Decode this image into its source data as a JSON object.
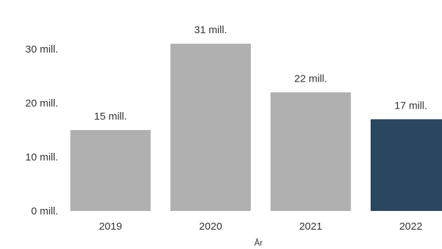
{
  "chart_data": {
    "type": "bar",
    "categories": [
      "2019",
      "2020",
      "2021",
      "2022"
    ],
    "values": [
      15,
      31,
      22,
      17
    ],
    "data_labels": [
      "15 mill.",
      "31 mill.",
      "22 mill.",
      "17 mill."
    ],
    "y_ticks": [
      0,
      10,
      20,
      30
    ],
    "y_tick_labels": [
      "0 mill.",
      "10 mill.",
      "20 mill.",
      "30 mill."
    ],
    "ylim": [
      0,
      31
    ],
    "xlabel": "År",
    "ylabel": "",
    "title": "",
    "grid": false,
    "bar_colors": [
      "#b0b0b0",
      "#b0b0b0",
      "#b0b0b0",
      "#2a4660"
    ]
  }
}
